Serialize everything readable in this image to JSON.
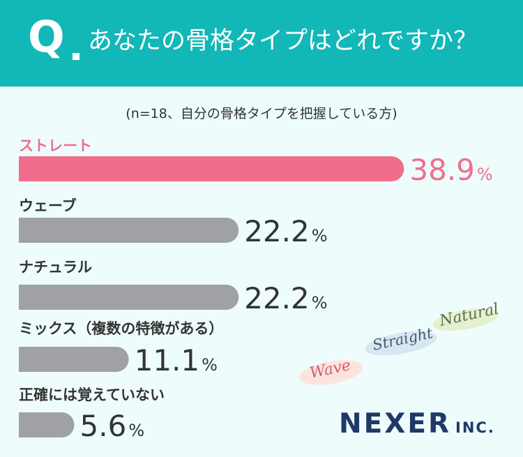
{
  "header": {
    "q_label": "Q",
    "question": "あなたの骨格タイプはどれですか？"
  },
  "note": "(n=18、自分の骨格タイプを把握している方)",
  "logo": {
    "name": "NEXER",
    "suffix": "INC."
  },
  "decor": {
    "natural": "Natural",
    "straight": "Straight",
    "wave": "Wave"
  },
  "colors": {
    "header": "#12b7b7",
    "highlight": "#f06e8c",
    "bar": "#a0a1a5",
    "background": "#eefdfc"
  },
  "chart_data": {
    "type": "bar",
    "orientation": "horizontal",
    "categories": [
      "ストレート",
      "ウェーブ",
      "ナチュラル",
      "ミックス（複数の特徴がある）",
      "正確には覚えていない"
    ],
    "values": [
      38.9,
      22.2,
      22.2,
      11.1,
      5.6
    ],
    "value_labels": [
      "38.9",
      "22.2",
      "22.2",
      "11.1",
      "5.6"
    ],
    "unit": "%",
    "highlight_index": 0
  }
}
